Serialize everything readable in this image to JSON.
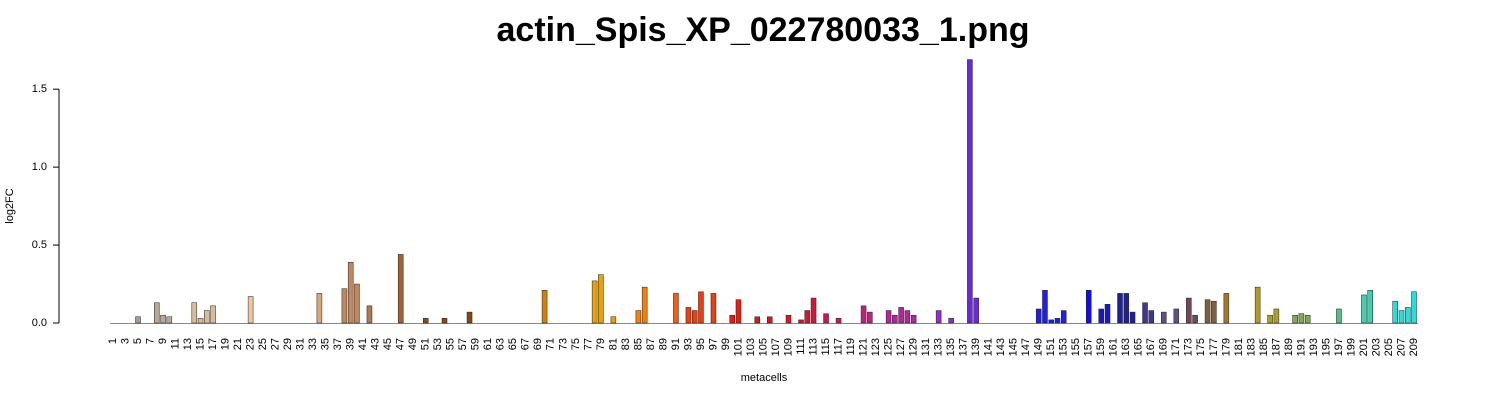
{
  "chart_data": {
    "type": "bar",
    "title": "actin_Spis_XP_022780033_1.png",
    "xlabel": "metacells",
    "ylabel": "log2FC",
    "categories": [
      "1",
      null,
      "3",
      null,
      "5",
      null,
      "7",
      null,
      "9",
      null,
      "11",
      null,
      "13",
      null,
      "15",
      null,
      "17",
      null,
      "19",
      null,
      "21",
      null,
      "23",
      null,
      "25",
      null,
      "27",
      null,
      "29",
      null,
      "31",
      null,
      "33",
      null,
      "35",
      null,
      "37",
      null,
      "39",
      null,
      "41",
      null,
      "43",
      null,
      "45",
      null,
      "47",
      null,
      "49",
      null,
      "51",
      null,
      "53",
      null,
      "55",
      null,
      "57",
      null,
      "59",
      null,
      "61",
      null,
      "63",
      null,
      "65",
      null,
      "67",
      null,
      "69",
      null,
      "71",
      null,
      "73",
      null,
      "75",
      null,
      "77",
      null,
      "79",
      null,
      "81",
      null,
      "83",
      null,
      "85",
      null,
      "87",
      null,
      "89",
      null,
      "91",
      null,
      "93",
      null,
      "95",
      null,
      "97",
      null,
      "99",
      null,
      "101",
      null,
      "103",
      null,
      "105",
      null,
      "107",
      null,
      "109",
      null,
      "111",
      null,
      "113",
      null,
      "115",
      null,
      "117",
      null,
      "119",
      null,
      "121",
      null,
      "123",
      null,
      "125",
      null,
      "127",
      null,
      "129",
      null,
      "131",
      null,
      "133",
      null,
      "135",
      null,
      "137",
      null,
      "139",
      null,
      "141",
      null,
      "143",
      null,
      "145",
      null,
      "147",
      null,
      "149",
      null,
      "151",
      null,
      "153",
      null,
      "155",
      null,
      "157",
      null,
      "159",
      null,
      "161",
      null,
      "163",
      null,
      "165",
      null,
      "167",
      null,
      "169",
      null,
      "171",
      null,
      "173",
      null,
      "175",
      null,
      "177",
      null,
      "179",
      null,
      "181",
      null,
      "183",
      null,
      "185",
      null,
      "187",
      null,
      "189",
      null,
      "191",
      null,
      "193",
      null,
      "195",
      null,
      "197",
      null,
      "199",
      null,
      "201",
      null,
      "203",
      null,
      "205",
      null,
      "207",
      null,
      "209"
    ],
    "values": [
      0,
      0,
      0,
      0,
      0.04,
      0,
      0,
      0.13,
      0.05,
      0.04,
      0,
      0,
      0,
      0.13,
      0.03,
      0.08,
      0.11,
      0,
      0,
      0,
      0,
      0,
      0.17,
      0,
      0,
      0,
      0,
      0,
      0,
      0,
      0,
      0,
      0,
      0.19,
      0,
      0,
      0,
      0.22,
      0.39,
      0.25,
      0,
      0.11,
      0,
      0,
      0,
      0,
      0.44,
      0,
      0,
      0,
      0.03,
      0,
      0,
      0.03,
      0,
      0,
      0,
      0.07,
      0,
      0,
      0,
      0,
      0,
      0,
      0,
      0,
      0,
      0,
      0,
      0.21,
      0,
      0,
      0,
      0,
      0,
      0,
      0,
      0.27,
      0.31,
      0,
      0.04,
      0,
      0,
      0,
      0.08,
      0.23,
      0,
      0,
      0,
      0,
      0.19,
      0,
      0.1,
      0.08,
      0.2,
      0,
      0.19,
      0,
      0,
      0.05,
      0.15,
      0,
      0,
      0.04,
      0,
      0.04,
      0,
      0,
      0.05,
      0,
      0.02,
      0.08,
      0.16,
      0,
      0.06,
      0,
      0.03,
      0,
      0,
      0,
      0.11,
      0.07,
      0,
      0,
      0.08,
      0.05,
      0.1,
      0.08,
      0.05,
      0,
      0,
      0,
      0.08,
      0,
      0.03,
      0,
      0,
      1.69,
      0.16,
      0,
      0,
      0,
      0,
      0,
      0,
      0,
      0,
      0,
      0.09,
      0.21,
      0.02,
      0.03,
      0.08,
      0,
      0,
      0,
      0.21,
      0,
      0.09,
      0.12,
      0,
      0.19,
      0.19,
      0.07,
      0,
      0.13,
      0.08,
      0,
      0.07,
      0,
      0.09,
      0,
      0.16,
      0.05,
      0,
      0.15,
      0.14,
      0,
      0.19,
      0,
      0,
      0,
      0,
      0.23,
      0,
      0.05,
      0.09,
      0,
      0,
      0.05,
      0.06,
      0.05,
      0,
      0,
      0,
      0,
      0.09,
      0,
      0,
      0,
      0.18,
      0.21,
      0,
      0,
      0,
      0.14,
      0.08,
      0.1,
      0.2
    ],
    "colors": [
      "#a89c90",
      "#a89c90",
      "#a89c90",
      "#a89c90",
      "#a89c90",
      "#a89c90",
      "#a89c90",
      "#b8a898",
      "#b8a898",
      "#b8a898",
      "#d4bc9c",
      "#d4bc9c",
      "#d4bc9c",
      "#d4bc9c",
      "#d4bc9c",
      "#d4bc9c",
      "#d4bc9c",
      "#d4bc9c",
      "#d4bc9c",
      "#d4bc9c",
      "#e8c8a0",
      "#e8c8a0",
      "#e8c8a0",
      "#e8c8a0",
      "#e8c8a0",
      "#e8c8a0",
      "#e8c8a0",
      "#e8c8a0",
      "#e8c8a0",
      "#e8c8a0",
      "#d8a878",
      "#d8a878",
      "#d8a878",
      "#d8a878",
      "#c89060",
      "#c89060",
      "#c89060",
      "#c08860",
      "#c08860",
      "#c08860",
      "#b07850",
      "#b07850",
      "#a86a40",
      "#a86a40",
      "#a86a40",
      "#a86a40",
      "#a06038",
      "#a06038",
      "#a06038",
      "#a06038",
      "#8b4a18",
      "#8b4a18",
      "#8b4a18",
      "#8b4a18",
      "#8b4a18",
      "#8b4a18",
      "#8b4513",
      "#8b4513",
      "#8b4513",
      "#8b4513",
      "#c07818",
      "#c07818",
      "#c07818",
      "#c07818",
      "#c07818",
      "#c07818",
      "#c07818",
      "#d08010",
      "#d08010",
      "#d08010",
      "#e8a010",
      "#e8a010",
      "#e8a010",
      "#e8a010",
      "#e8a010",
      "#e8a010",
      "#e8a010",
      "#e8a010",
      "#e8a010",
      "#e8a010",
      "#e8a000",
      "#f08818",
      "#f08818",
      "#f08818",
      "#f08010",
      "#f08010",
      "#f08010",
      "#f08010",
      "#f06010",
      "#f06010",
      "#f06010",
      "#e85010",
      "#e84010",
      "#e84010",
      "#e84010",
      "#e84010",
      "#e84010",
      "#e03010",
      "#e03010",
      "#e02010",
      "#e02010",
      "#d81818",
      "#d81818",
      "#d81818",
      "#d81818",
      "#d81818",
      "#d81818",
      "#d81828",
      "#d81828",
      "#d81828",
      "#d01838",
      "#d01838",
      "#d01838",
      "#c81850",
      "#c81850",
      "#c81850",
      "#c81850",
      "#c02080",
      "#c02080",
      "#c02080",
      "#c02080",
      "#c02080",
      "#b02898",
      "#b02898",
      "#b02898",
      "#b02898",
      "#b02898",
      "#b02898",
      "#b02898",
      "#9030c0",
      "#9030c0",
      "#9030c0",
      "#9030c0",
      "#8030d0",
      "#8030d0",
      "#8030d0",
      "#6a28d8",
      "#6a28d8",
      "#6a28d8",
      "#4020e0",
      "#4020e0",
      "#2818e0",
      "#2818e0",
      "#2818e0",
      "#2818e0",
      "#2818e0",
      "#2818e0",
      "#2020e0",
      "#2020e0",
      "#2020e0",
      "#2020e0",
      "#2020e0",
      "#2020e0",
      "#1818d8",
      "#1818d8",
      "#1818d8",
      "#1010e0",
      "#1818c8",
      "#1818c8",
      "#1818c8",
      "#202090",
      "#202090",
      "#202090",
      "#202090",
      "#403890",
      "#403890",
      "#403890",
      "#605080",
      "#605080",
      "#605080",
      "#605080",
      "#704858",
      "#704858",
      "#704858",
      "#704858",
      "#806040",
      "#806040",
      "#806040",
      "#a07830",
      "#a07830",
      "#b89828",
      "#b89828",
      "#b89820",
      "#b89820",
      "#a8a030",
      "#a8a030",
      "#a8a030",
      "#80a850",
      "#80a850",
      "#80a850",
      "#80a850",
      "#80a850",
      "#80a850",
      "#60b870",
      "#60b870",
      "#50c080",
      "#50c080",
      "#40d0b0",
      "#40d0b0",
      "#40d0b0",
      "#40d0b0",
      "#40d0b0",
      "#30d8c8",
      "#30d8c8",
      "#20e0e0",
      "#20e0e0",
      "#20e0e0",
      "#20e0e0",
      "#20e0e0"
    ],
    "ylim": [
      0,
      1.7
    ],
    "yticks": [
      {
        "value": 0,
        "label": "0.0"
      },
      {
        "value": 0.5,
        "label": "0.5"
      },
      {
        "value": 1,
        "label": "1.0"
      },
      {
        "value": 1.5,
        "label": "1.5"
      }
    ]
  }
}
